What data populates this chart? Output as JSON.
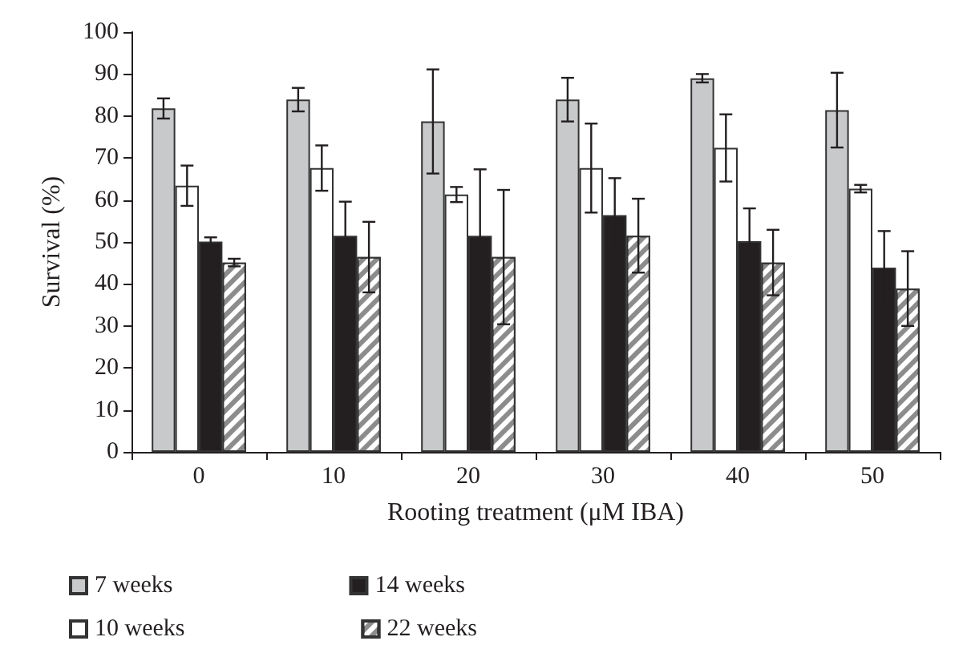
{
  "chart_data": {
    "type": "bar",
    "xlabel": "Rooting treatment (μM IBA)",
    "ylabel": "Survival (%)",
    "categories": [
      "0",
      "10",
      "20",
      "30",
      "40",
      "50"
    ],
    "series": [
      {
        "name": "7 weeks",
        "color": "#c8c9cb",
        "values": [
          81.8,
          83.9,
          78.7,
          83.9,
          89,
          81.4
        ],
        "errors": [
          2.4,
          2.8,
          12.4,
          5.2,
          1,
          8.9
        ]
      },
      {
        "name": "10 weeks",
        "color": "#ffffff",
        "values": [
          63.4,
          67.6,
          61.3,
          67.6,
          72.4,
          62.7
        ],
        "errors": [
          4.8,
          5.4,
          1.8,
          10.6,
          8,
          0.9
        ]
      },
      {
        "name": "14 weeks",
        "color": "#231f20",
        "values": [
          50.1,
          51.5,
          51.5,
          56.4,
          50.2,
          43.9
        ],
        "errors": [
          1,
          8.1,
          15.8,
          8.8,
          7.8,
          8.7
        ]
      },
      {
        "name": "22 weeks",
        "color": "#8c8c8c",
        "values": [
          45.1,
          46.4,
          46.4,
          51.5,
          45.1,
          38.9
        ],
        "errors": [
          0.9,
          8.4,
          16,
          8.8,
          7.8,
          8.9
        ]
      }
    ],
    "ylim": [
      0,
      100
    ],
    "yticks": [
      0,
      10,
      20,
      30,
      40,
      50,
      60,
      70,
      80,
      90,
      100
    ],
    "grid": false,
    "legend": "bottom left"
  }
}
